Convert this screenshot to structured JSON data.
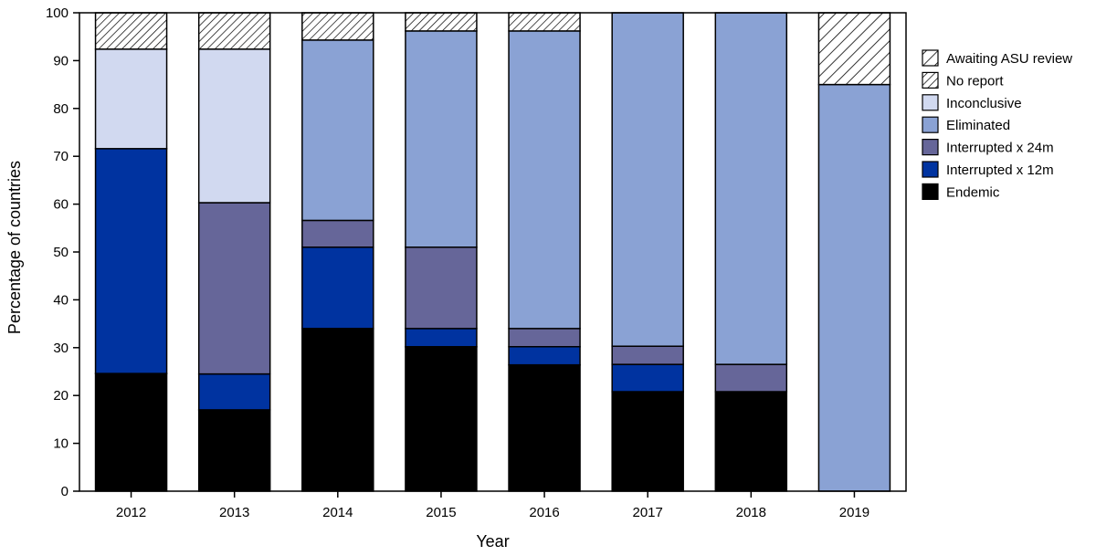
{
  "chart_data": {
    "type": "bar",
    "stacked": true,
    "xlabel": "Year",
    "ylabel": "Percentage of countries",
    "ylim": [
      0,
      100
    ],
    "yticks": [
      0,
      10,
      20,
      30,
      40,
      50,
      60,
      70,
      80,
      90,
      100
    ],
    "grid": false,
    "legend_position": "right",
    "categories": [
      "2012",
      "2013",
      "2014",
      "2015",
      "2016",
      "2017",
      "2018",
      "2019"
    ],
    "series": [
      {
        "name": "Endemic",
        "color": "#000000",
        "pattern": "solid",
        "values": [
          24.6,
          17.0,
          34.0,
          30.2,
          26.4,
          20.8,
          20.8,
          0
        ]
      },
      {
        "name": "Interrupted x 12m",
        "color": "#0033a0",
        "pattern": "solid",
        "values": [
          47.0,
          7.5,
          17.0,
          3.8,
          3.8,
          5.7,
          0,
          0
        ]
      },
      {
        "name": "Interrupted x 24m",
        "color": "#666699",
        "pattern": "solid",
        "values": [
          0,
          35.8,
          5.6,
          17.0,
          3.8,
          3.8,
          5.7,
          0
        ]
      },
      {
        "name": "Eliminated",
        "color": "#8aa2d4",
        "pattern": "solid",
        "values": [
          0,
          0,
          37.7,
          45.2,
          62.2,
          69.7,
          73.5,
          85.0
        ]
      },
      {
        "name": "Inconclusive",
        "color": "#d1d9f0",
        "pattern": "solid",
        "values": [
          20.8,
          32.1,
          0,
          0,
          0,
          0,
          0,
          0
        ]
      },
      {
        "name": "No report",
        "color": "#ffffff",
        "pattern": "hatch",
        "values": [
          7.6,
          7.6,
          5.7,
          3.8,
          3.8,
          0,
          0,
          0
        ]
      },
      {
        "name": "Awaiting ASU review",
        "color": "#ffffff",
        "pattern": "hatch-wide",
        "values": [
          0,
          0,
          0,
          0,
          0,
          0,
          0,
          15.0
        ]
      }
    ],
    "legend_order": [
      "Awaiting ASU review",
      "No report",
      "Inconclusive",
      "Eliminated",
      "Interrupted x 24m",
      "Interrupted x 12m",
      "Endemic"
    ]
  }
}
